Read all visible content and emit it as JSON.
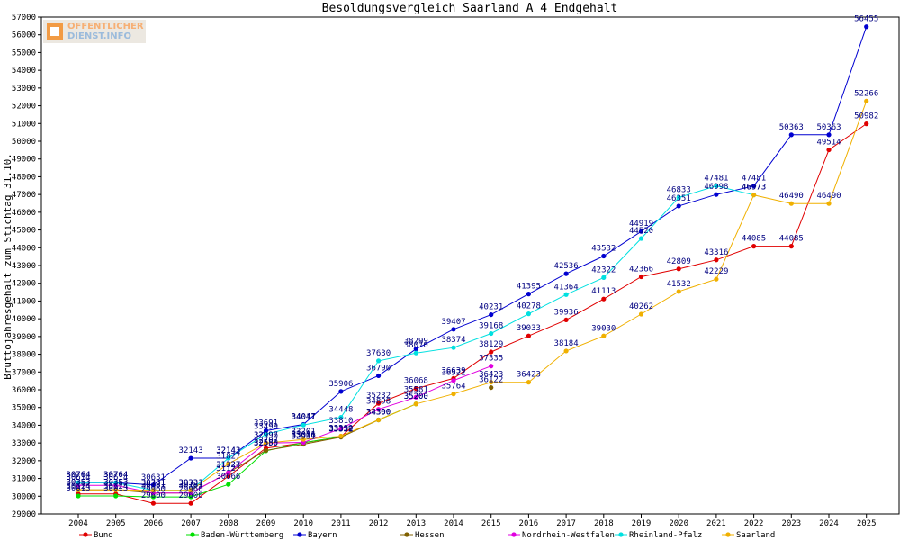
{
  "logo": {
    "line1": "OFFENTLICHER",
    "line2": "DIENST.INFO"
  },
  "chart_data": {
    "type": "line",
    "title": "Besoldungsvergleich Saarland A 4 Endgehalt",
    "ylabel": "Bruttojahresgehalt zum Stichtag 31.10.",
    "xlabel": "",
    "ylim": [
      29000,
      57000
    ],
    "yticks": [
      29000,
      30000,
      31000,
      32000,
      33000,
      34000,
      35000,
      36000,
      37000,
      38000,
      39000,
      40000,
      41000,
      42000,
      43000,
      44000,
      45000,
      46000,
      47000,
      48000,
      49000,
      50000,
      51000,
      52000,
      53000,
      54000,
      55000,
      56000,
      57000
    ],
    "categories": [
      "2004",
      "2005",
      "2006",
      "2007",
      "2008",
      "2009",
      "2010",
      "2011",
      "2012",
      "2013",
      "2014",
      "2015",
      "2016",
      "2017",
      "2018",
      "2019",
      "2020",
      "2021",
      "2022",
      "2023",
      "2024",
      "2025"
    ],
    "grid": false,
    "legend_position": "bottom",
    "series": [
      {
        "name": "Bund",
        "color": "#e00000",
        "values": [
          30124,
          30124,
          29600,
          29600,
          31127,
          32707,
          33006,
          33352,
          35232,
          36068,
          36639,
          38129,
          39033,
          39936,
          41113,
          42366,
          42809,
          43316,
          44085,
          44085,
          49514,
          50982
        ]
      },
      {
        "name": "Baden-Württemberg",
        "color": "#00e000",
        "values": [
          30013,
          30013,
          29960,
          29960,
          30666,
          32555,
          33016,
          33352,
          34300,
          35200,
          null,
          null,
          null,
          null,
          null,
          null,
          null,
          null,
          null,
          null,
          null,
          null
        ]
      },
      {
        "name": "Bayern",
        "color": "#0000d0",
        "values": [
          30764,
          30764,
          30631,
          32143,
          32143,
          33691,
          34047,
          35906,
          36790,
          38299,
          39407,
          40231,
          41395,
          42536,
          43532,
          44919,
          46351,
          46998,
          47481,
          50363,
          50363,
          56455
        ]
      },
      {
        "name": "Hessen",
        "color": "#806000",
        "values": [
          30353,
          30353,
          30181,
          30181,
          31327,
          32580,
          32931,
          33332,
          34300,
          null,
          null,
          36122,
          null,
          null,
          null,
          null,
          null,
          null,
          null,
          null,
          null,
          null
        ]
      },
      {
        "name": "Nordrhein-Westfalen",
        "color": "#e000e0",
        "values": [
          30614,
          30614,
          30181,
          30181,
          31327,
          32996,
          33031,
          33810,
          34898,
          35581,
          36522,
          37335,
          null,
          null,
          null,
          null,
          null,
          null,
          null,
          null,
          null,
          null
        ]
      },
      {
        "name": "Rheinland-Pfalz",
        "color": "#00e0e0",
        "values": [
          30764,
          30764,
          30331,
          30331,
          32143,
          33499,
          34011,
          34448,
          37630,
          38070,
          38374,
          39168,
          40278,
          41364,
          42322,
          44520,
          46833,
          47481,
          46973,
          null,
          null,
          null
        ]
      },
      {
        "name": "Saarland",
        "color": "#f0b000",
        "values": [
          30353,
          30353,
          30331,
          30331,
          31827,
          32997,
          33201,
          33390,
          34300,
          35200,
          35764,
          36423,
          36423,
          38184,
          39030,
          40262,
          41532,
          42229,
          46973,
          46490,
          46490,
          52266
        ]
      }
    ]
  }
}
